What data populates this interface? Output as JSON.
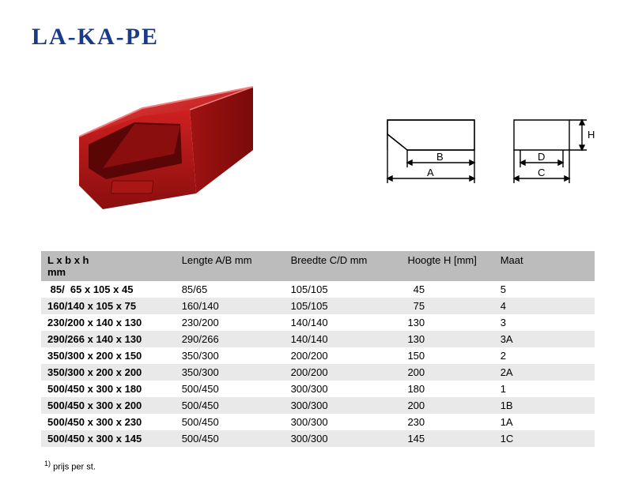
{
  "logo": {
    "text": "LA-KA-PE",
    "color": "#1a3a8a"
  },
  "product": {
    "type": "storage-bin",
    "color_main": "#c01818",
    "color_shadow": "#7a0e0e",
    "color_highlight": "#e84040"
  },
  "diagram": {
    "stroke": "#000000",
    "labels": {
      "A": "A",
      "B": "B",
      "C": "C",
      "D": "D",
      "H": "H"
    }
  },
  "table": {
    "header_bg": "#bcbcbc",
    "row_even_bg": "#e9e9e9",
    "row_odd_bg": "#ffffff",
    "font_size": 13,
    "columns": [
      {
        "key": "lxbxh",
        "label_line1": "L x b x h",
        "label_line2": "mm",
        "bold": true
      },
      {
        "key": "lengte",
        "label": "Lengte A/B mm"
      },
      {
        "key": "breedte",
        "label": "Breedte C/D mm"
      },
      {
        "key": "hoogte",
        "label": "Hoogte H [mm]"
      },
      {
        "key": "maat",
        "label": "Maat"
      }
    ],
    "rows": [
      {
        "lxbxh": " 85/  65 x 105 x 45",
        "lengte": "85/65",
        "breedte": "105/105",
        "hoogte": "  45",
        "maat": "5"
      },
      {
        "lxbxh": "160/140 x 105 x 75",
        "lengte": "160/140",
        "breedte": "105/105",
        "hoogte": "  75",
        "maat": "4"
      },
      {
        "lxbxh": "230/200 x 140 x 130",
        "lengte": "230/200",
        "breedte": "140/140",
        "hoogte": "130",
        "maat": "3"
      },
      {
        "lxbxh": "290/266 x 140 x 130",
        "lengte": "290/266",
        "breedte": "140/140",
        "hoogte": "130",
        "maat": "3A"
      },
      {
        "lxbxh": "350/300 x 200 x 150",
        "lengte": "350/300",
        "breedte": "200/200",
        "hoogte": "150",
        "maat": "2"
      },
      {
        "lxbxh": "350/300 x 200 x 200",
        "lengte": "350/300",
        "breedte": "200/200",
        "hoogte": "200",
        "maat": "2A"
      },
      {
        "lxbxh": "500/450 x 300 x 180",
        "lengte": "500/450",
        "breedte": "300/300",
        "hoogte": "180",
        "maat": "1"
      },
      {
        "lxbxh": "500/450 x 300 x 200",
        "lengte": "500/450",
        "breedte": "300/300",
        "hoogte": "200",
        "maat": "1B"
      },
      {
        "lxbxh": "500/450 x 300 x 230",
        "lengte": "500/450",
        "breedte": "300/300",
        "hoogte": "230",
        "maat": "1A"
      },
      {
        "lxbxh": "500/450 x 300 x 145",
        "lengte": "500/450",
        "breedte": "300/300",
        "hoogte": "145",
        "maat": "1C"
      }
    ]
  },
  "footnote": {
    "marker": "1)",
    "text": "prijs per st."
  }
}
